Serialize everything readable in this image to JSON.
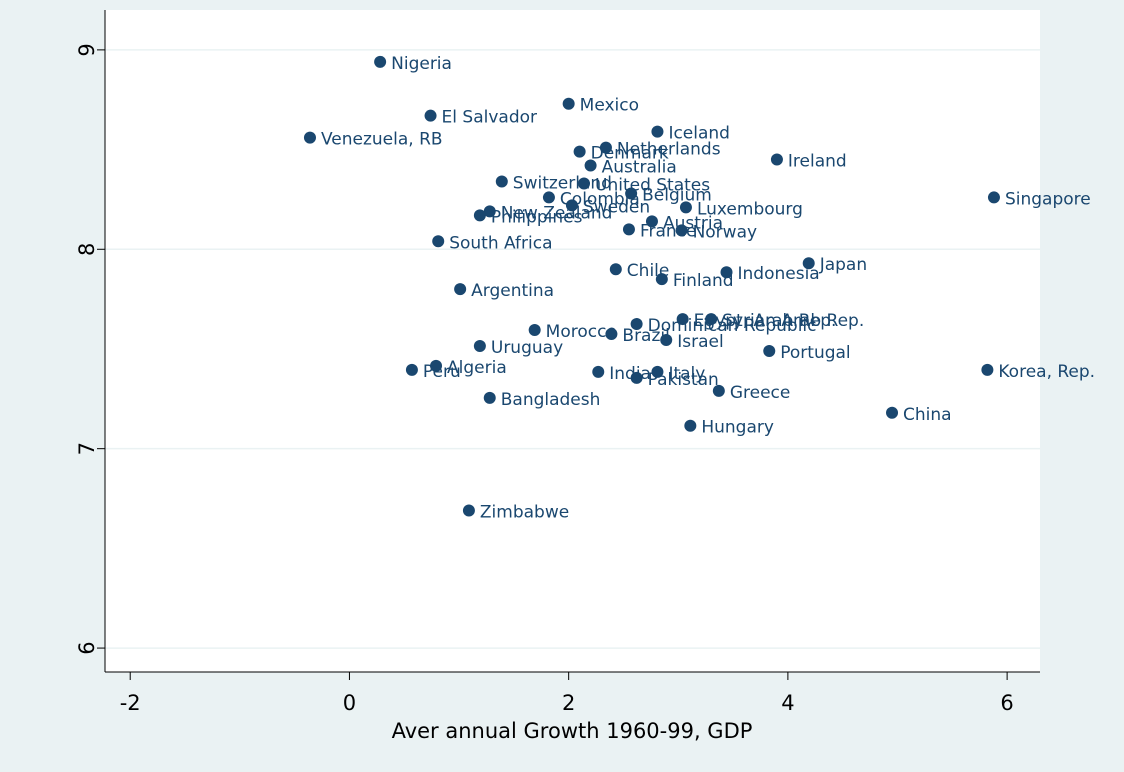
{
  "chart_data": {
    "type": "scatter",
    "x_label": "Aver annual Growth 1960-99, GDP",
    "color": "#1a476f",
    "labels": [
      "Nigeria",
      "El Salvador",
      "Venezuela, RB",
      "Mexico",
      "Iceland",
      "Netherlands",
      "Denmark",
      "Australia",
      "Ireland",
      "Singapore",
      "Switzerland",
      "United States",
      "Colombia",
      "Belgium",
      "Sweden",
      "Luxembourg",
      "New Zealand",
      "Philippines",
      "Austria",
      "France",
      "Norway",
      "South Africa",
      "Chile",
      "Finland",
      "Indonesia",
      "Japan",
      "Argentina",
      "Egypt, Arab Rep.",
      "Syrian Arab Rep.",
      "Dominican Republic",
      "Morocco",
      "Brazil",
      "Israel",
      "Portugal",
      "Uruguay",
      "Algeria",
      "Peru",
      "India",
      "Italy",
      "Pakistan",
      "Greece",
      "Korea, Rep.",
      "Bangladesh",
      "Hungary",
      "China",
      "Zimbabwe"
    ],
    "x": [
      0.28,
      0.74,
      -0.36,
      2.0,
      2.81,
      2.34,
      2.1,
      2.2,
      3.9,
      5.88,
      1.39,
      2.14,
      1.82,
      2.57,
      2.03,
      3.07,
      1.28,
      1.19,
      2.76,
      2.55,
      3.03,
      0.81,
      2.43,
      2.85,
      3.44,
      4.19,
      1.01,
      3.04,
      3.3,
      2.62,
      1.69,
      2.39,
      2.89,
      3.83,
      1.19,
      0.79,
      0.57,
      2.27,
      2.81,
      2.62,
      3.37,
      5.82,
      1.28,
      3.11,
      4.95,
      1.09
    ],
    "values": [
      8.94,
      8.67,
      8.56,
      8.73,
      8.59,
      8.51,
      8.49,
      8.42,
      8.45,
      8.26,
      8.34,
      8.33,
      8.26,
      8.28,
      8.22,
      8.21,
      8.19,
      8.17,
      8.14,
      8.1,
      8.095,
      8.04,
      7.9,
      7.85,
      7.885,
      7.93,
      7.8,
      7.65,
      7.65,
      7.625,
      7.595,
      7.575,
      7.545,
      7.49,
      7.515,
      7.415,
      7.395,
      7.385,
      7.385,
      7.355,
      7.29,
      7.395,
      7.255,
      7.115,
      7.18,
      6.69
    ],
    "xlim": [
      -2.23,
      6.3
    ],
    "ylim": [
      5.88,
      9.2
    ],
    "xticks": [
      -2,
      0,
      2,
      4,
      6
    ],
    "yticks": [
      6,
      7,
      8,
      9
    ],
    "grid": true
  }
}
